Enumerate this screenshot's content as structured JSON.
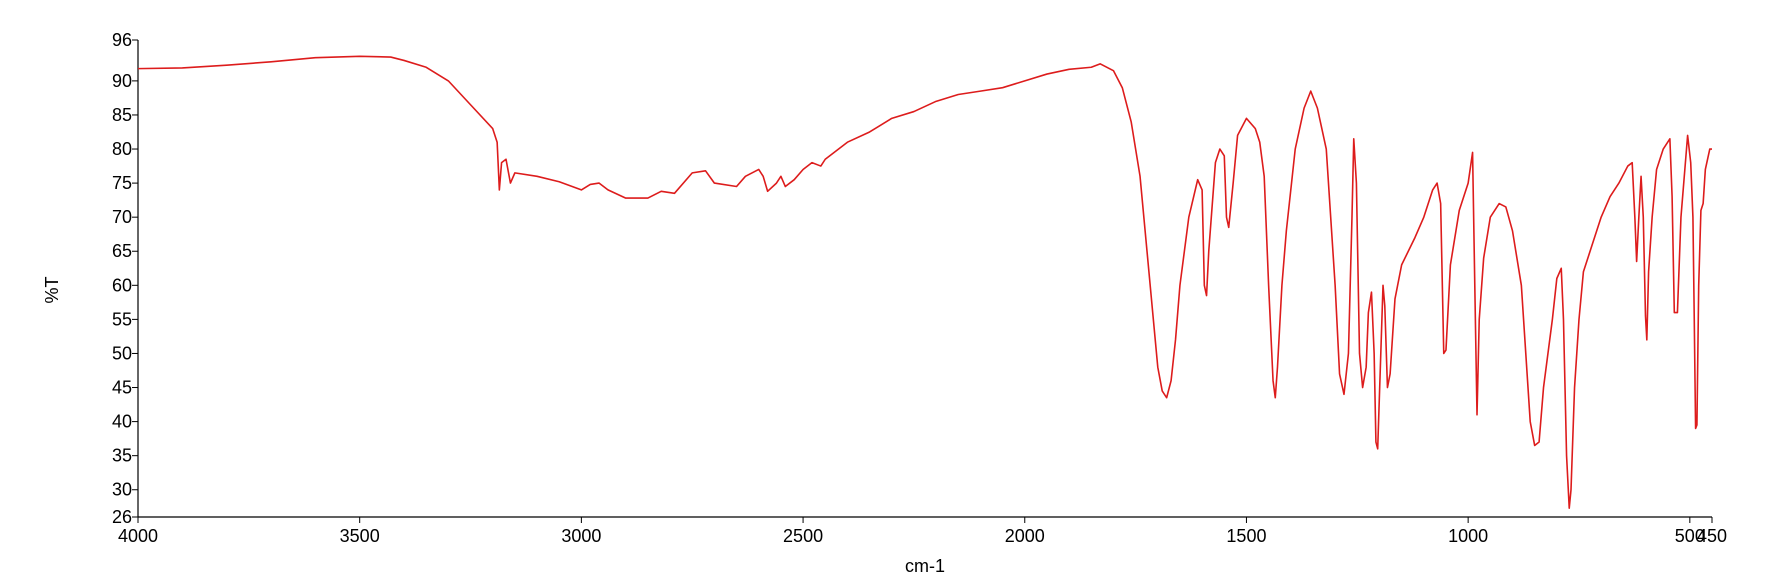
{
  "chart_data": {
    "type": "line",
    "xlabel": "cm-1",
    "ylabel": "%T",
    "xlim": [
      4000,
      450
    ],
    "ylim": [
      26,
      96
    ],
    "xticks": [
      4000,
      3500,
      3000,
      2500,
      2000,
      1500,
      1000,
      500,
      450
    ],
    "yticks": [
      26,
      30,
      35,
      40,
      45,
      50,
      55,
      60,
      65,
      70,
      75,
      80,
      85,
      90,
      96
    ],
    "grid": false,
    "x": [
      4000,
      3900,
      3800,
      3700,
      3600,
      3500,
      3430,
      3400,
      3350,
      3300,
      3250,
      3200,
      3190,
      3185,
      3180,
      3170,
      3160,
      3150,
      3100,
      3050,
      3000,
      2980,
      2960,
      2940,
      2900,
      2850,
      2820,
      2790,
      2750,
      2720,
      2700,
      2650,
      2630,
      2600,
      2590,
      2580,
      2560,
      2550,
      2540,
      2520,
      2500,
      2480,
      2460,
      2450,
      2400,
      2350,
      2300,
      2250,
      2200,
      2150,
      2100,
      2050,
      2000,
      1950,
      1900,
      1850,
      1830,
      1800,
      1780,
      1760,
      1740,
      1720,
      1710,
      1700,
      1690,
      1680,
      1670,
      1660,
      1650,
      1630,
      1610,
      1600,
      1595,
      1590,
      1585,
      1570,
      1560,
      1550,
      1545,
      1540,
      1530,
      1520,
      1500,
      1480,
      1470,
      1460,
      1450,
      1440,
      1435,
      1430,
      1420,
      1410,
      1400,
      1390,
      1370,
      1355,
      1340,
      1320,
      1310,
      1300,
      1290,
      1280,
      1270,
      1262,
      1258,
      1252,
      1245,
      1238,
      1230,
      1225,
      1218,
      1212,
      1208,
      1204,
      1198,
      1192,
      1188,
      1182,
      1176,
      1165,
      1150,
      1120,
      1100,
      1080,
      1070,
      1062,
      1055,
      1050,
      1040,
      1020,
      1000,
      990,
      985,
      980,
      975,
      965,
      950,
      930,
      915,
      900,
      880,
      870,
      860,
      850,
      840,
      830,
      810,
      800,
      790,
      785,
      778,
      772,
      768,
      760,
      750,
      740,
      720,
      700,
      680,
      660,
      640,
      630,
      624,
      620,
      615,
      610,
      605,
      600,
      597,
      593,
      585,
      575,
      560,
      545,
      540,
      535,
      528,
      520,
      505,
      498,
      493,
      490,
      487,
      484,
      480,
      475,
      470,
      465,
      455,
      450
    ],
    "series": [
      {
        "name": "%T",
        "color": "#dd1c1c",
        "values": [
          91.8,
          91.9,
          92.3,
          92.8,
          93.4,
          93.6,
          93.5,
          93.0,
          92.0,
          90.0,
          86.5,
          83.0,
          81,
          74,
          78,
          78.5,
          75,
          76.5,
          76,
          75.2,
          74.0,
          74.8,
          75,
          74,
          72.8,
          72.8,
          73.8,
          73.5,
          76.5,
          76.8,
          75,
          74.5,
          76,
          77,
          76,
          73.8,
          75,
          76,
          74.5,
          75.5,
          77,
          78,
          77.5,
          78.5,
          81,
          82.5,
          84.5,
          85.5,
          87,
          88,
          88.5,
          89,
          90,
          91,
          91.7,
          92,
          92.5,
          91.5,
          89,
          84,
          76,
          62,
          55,
          48,
          44.5,
          43.5,
          46,
          52,
          60,
          70,
          75.5,
          74,
          60,
          58.5,
          65,
          78,
          80,
          79,
          70,
          68.5,
          75,
          82,
          84.5,
          83,
          81,
          76,
          60,
          46,
          43.5,
          48,
          60,
          68,
          74,
          80,
          86,
          88.5,
          86,
          80,
          70,
          60,
          47,
          44,
          50,
          70,
          81.5,
          75,
          50,
          45,
          48,
          56,
          59,
          50,
          37,
          36,
          48,
          60,
          57,
          45,
          47,
          58,
          63,
          67,
          70,
          74,
          75,
          72,
          50,
          50.5,
          63,
          71,
          75,
          79.5,
          60,
          41,
          55,
          64,
          70,
          72,
          71.5,
          68,
          60,
          50,
          40,
          36.5,
          37,
          45,
          55,
          61,
          62.5,
          55,
          35,
          27.3,
          30,
          45,
          55,
          62,
          66,
          70,
          73,
          75,
          77.5,
          78,
          70,
          63.5,
          70,
          76,
          70,
          55.5,
          52,
          62,
          70,
          77,
          80,
          81.5,
          73,
          56,
          56,
          70,
          82,
          78,
          70,
          55,
          39,
          39.5,
          60,
          71,
          72,
          77,
          80,
          80
        ]
      }
    ]
  }
}
